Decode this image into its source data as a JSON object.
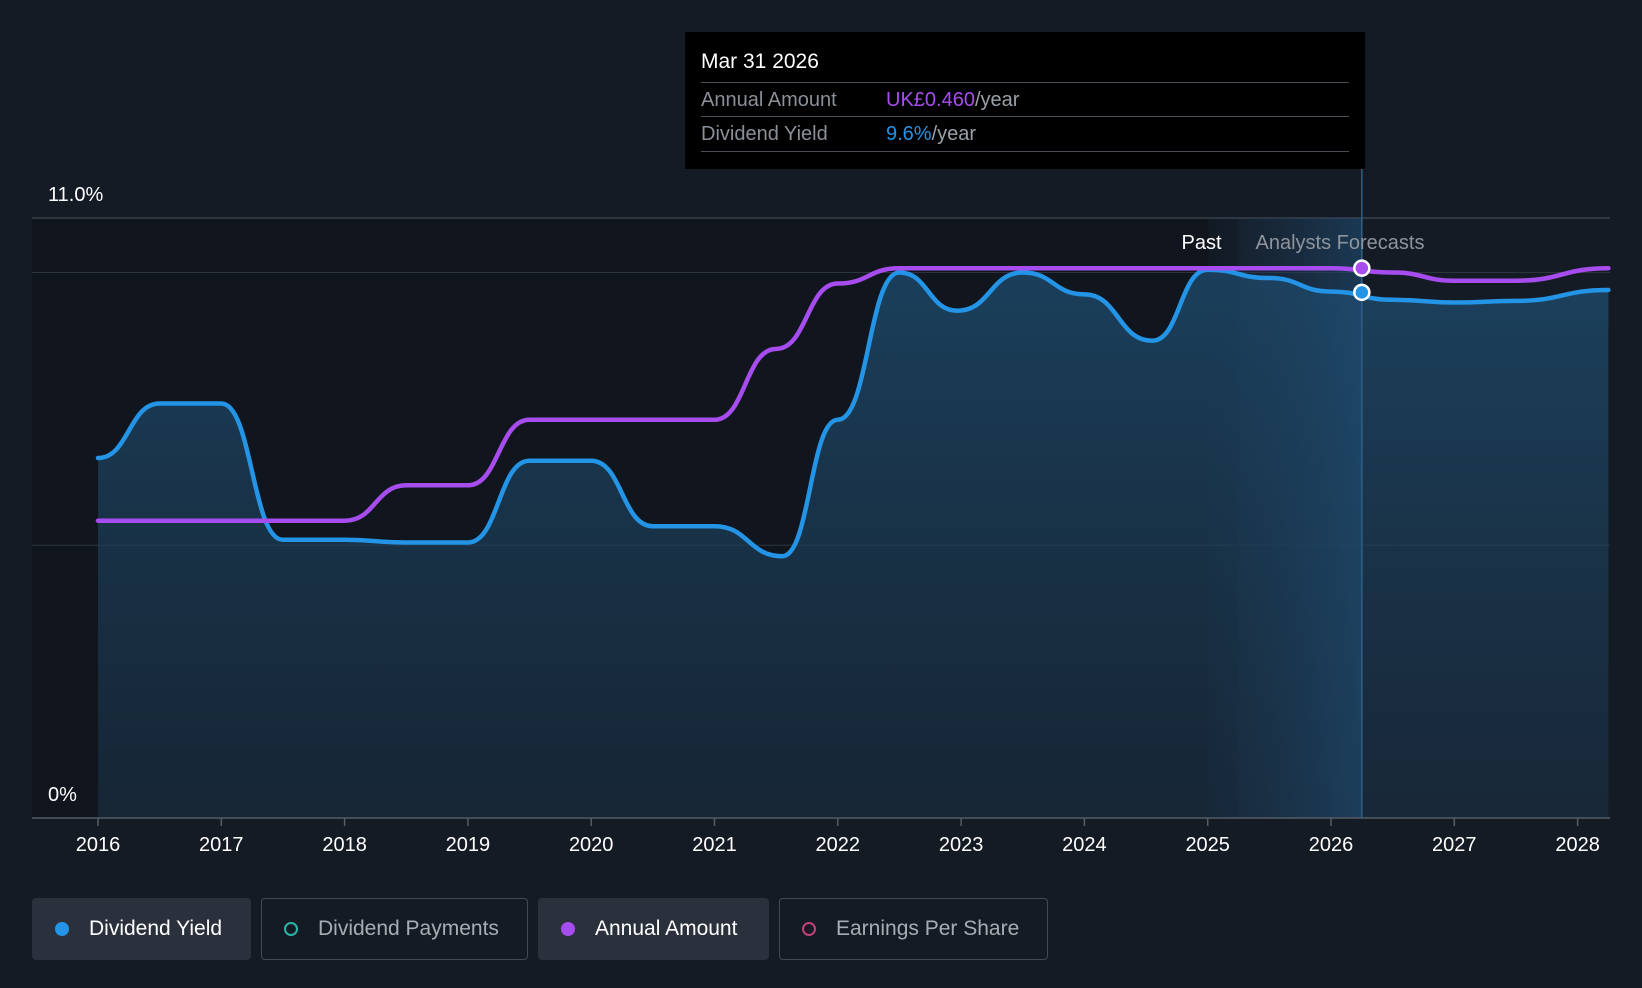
{
  "chart_data": {
    "type": "line",
    "title": "",
    "y_axis": {
      "min": 0,
      "max": 11.0,
      "labels": [
        "11.0%",
        "0%"
      ]
    },
    "x_axis": {
      "ticks": [
        "2016",
        "2017",
        "2018",
        "2019",
        "2020",
        "2021",
        "2022",
        "2023",
        "2024",
        "2025",
        "2026",
        "2027",
        "2028"
      ]
    },
    "regions": {
      "past_label": "Past",
      "forecast_label": "Analysts Forecasts",
      "forecast_start": 2025.25
    },
    "series": [
      {
        "name": "Dividend Yield",
        "color": "#2394e6",
        "area": true,
        "points": [
          [
            2016.0,
            6.6
          ],
          [
            2016.5,
            7.6
          ],
          [
            2017.0,
            7.6
          ],
          [
            2017.5,
            5.1
          ],
          [
            2018.0,
            5.1
          ],
          [
            2018.5,
            5.05
          ],
          [
            2019.0,
            5.05
          ],
          [
            2019.5,
            6.55
          ],
          [
            2020.0,
            6.55
          ],
          [
            2020.5,
            5.35
          ],
          [
            2021.0,
            5.35
          ],
          [
            2021.55,
            4.8
          ],
          [
            2022.0,
            7.3
          ],
          [
            2022.5,
            10.0
          ],
          [
            2022.97,
            9.3
          ],
          [
            2023.5,
            10.0
          ],
          [
            2024.0,
            9.6
          ],
          [
            2024.55,
            8.75
          ],
          [
            2025.0,
            10.05
          ],
          [
            2025.5,
            9.9
          ],
          [
            2026.0,
            9.65
          ],
          [
            2026.5,
            9.5
          ],
          [
            2027.0,
            9.45
          ],
          [
            2027.5,
            9.48
          ],
          [
            2028.25,
            9.68
          ]
        ]
      },
      {
        "name": "Annual Amount",
        "color": "#a74df0",
        "area": false,
        "points": [
          [
            2016.0,
            5.45
          ],
          [
            2017.0,
            5.45
          ],
          [
            2018.0,
            5.45
          ],
          [
            2018.5,
            6.1
          ],
          [
            2019.0,
            6.1
          ],
          [
            2019.5,
            7.3
          ],
          [
            2020.0,
            7.3
          ],
          [
            2021.0,
            7.3
          ],
          [
            2021.5,
            8.6
          ],
          [
            2022.0,
            9.8
          ],
          [
            2022.5,
            10.08
          ],
          [
            2023.0,
            10.08
          ],
          [
            2024.0,
            10.08
          ],
          [
            2025.0,
            10.08
          ],
          [
            2026.0,
            10.08
          ],
          [
            2026.5,
            10.0
          ],
          [
            2027.0,
            9.85
          ],
          [
            2027.5,
            9.85
          ],
          [
            2028.25,
            10.08
          ]
        ]
      }
    ],
    "tooltip": {
      "date": "Mar 31 2026",
      "x": 2026.25,
      "rows": [
        {
          "label": "Annual Amount",
          "value": "UK£0.460",
          "unit": "/year",
          "color": "#a74df0"
        },
        {
          "label": "Dividend Yield",
          "value": "9.6%",
          "unit": "/year",
          "color": "#2394e6"
        }
      ]
    }
  },
  "legend": [
    {
      "label": "Dividend Yield",
      "color": "#2394e6",
      "active": true,
      "filled": true
    },
    {
      "label": "Dividend Payments",
      "color": "#2bb5a6",
      "active": false,
      "filled": false
    },
    {
      "label": "Annual Amount",
      "color": "#a74df0",
      "active": true,
      "filled": true
    },
    {
      "label": "Earnings Per Share",
      "color": "#c23f7c",
      "active": false,
      "filled": false
    }
  ]
}
